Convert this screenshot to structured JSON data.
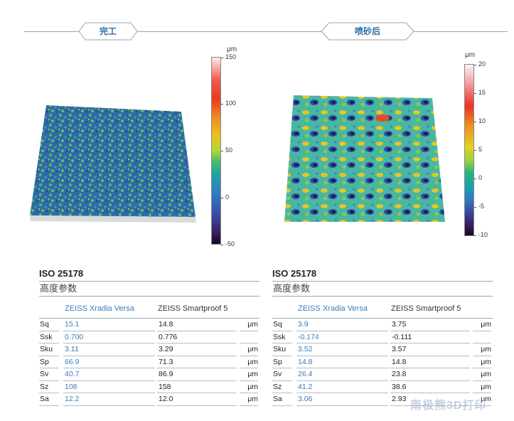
{
  "tabs": {
    "left": "完工",
    "right": "喷砂后"
  },
  "scale_left": {
    "unit": "μm",
    "ticks": [
      "150",
      "100",
      "50",
      "0",
      "-50"
    ]
  },
  "scale_right": {
    "unit": "μm",
    "ticks": [
      "20",
      "15",
      "10",
      "5",
      "0",
      "-5",
      "-10"
    ]
  },
  "tables": [
    {
      "standard": "ISO 25178",
      "subtitle": "高度参数",
      "col1": "ZEISS Xradia Versa",
      "col2": "ZEISS Smartproof 5",
      "rows": [
        {
          "name": "Sq",
          "v1": "15.1",
          "v2": "14.8",
          "unit": "μm"
        },
        {
          "name": "Ssk",
          "v1": "0.700",
          "v2": "0.776",
          "unit": ""
        },
        {
          "name": "Sku",
          "v1": "3.11",
          "v2": "3.29",
          "unit": "μm"
        },
        {
          "name": "Sp",
          "v1": "66.9",
          "v2": "71.3",
          "unit": "μm"
        },
        {
          "name": "Sv",
          "v1": "40.7",
          "v2": "86.9",
          "unit": "μm"
        },
        {
          "name": "Sz",
          "v1": "108",
          "v2": "158",
          "unit": "μm"
        },
        {
          "name": "Sa",
          "v1": "12.2",
          "v2": "12.0",
          "unit": "μm"
        }
      ]
    },
    {
      "standard": "ISO 25178",
      "subtitle": "高度参数",
      "col1": "ZEISS Xradia Versa",
      "col2": "ZEISS Smartproof 5",
      "rows": [
        {
          "name": "Sq",
          "v1": "3.9",
          "v2": "3.75",
          "unit": "μm"
        },
        {
          "name": "Ssk",
          "v1": "-0.174",
          "v2": "-0.111",
          "unit": ""
        },
        {
          "name": "Sku",
          "v1": "3.52",
          "v2": "3.57",
          "unit": "μm"
        },
        {
          "name": "Sp",
          "v1": "14.8",
          "v2": "14.8",
          "unit": "μm"
        },
        {
          "name": "Sv",
          "v1": "26.4",
          "v2": "23.8",
          "unit": "μm"
        },
        {
          "name": "Sz",
          "v1": "41.2",
          "v2": "38.6",
          "unit": "μm"
        },
        {
          "name": "Sa",
          "v1": "3.06",
          "v2": "2.93",
          "unit": "μm"
        }
      ]
    }
  ],
  "watermark": "南极熊3D打印"
}
